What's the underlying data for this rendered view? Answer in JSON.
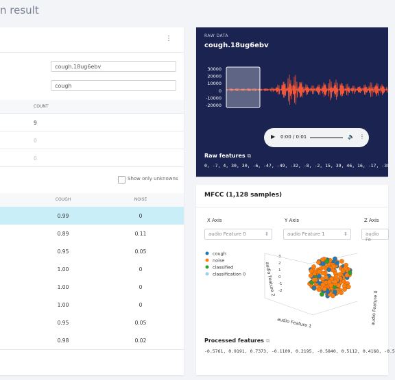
{
  "header": {
    "title": "n result"
  },
  "left_panel": {
    "fields": [
      "cough.18ug6ebv",
      "cough"
    ],
    "count_table": {
      "header": "COUNT",
      "rows": [
        "9",
        "0",
        "0"
      ]
    },
    "filter": {
      "label": "Show only unknowns"
    },
    "result_table": {
      "headers": [
        "COUGH",
        "NOISE"
      ],
      "rows": [
        [
          "0.99",
          "0"
        ],
        [
          "0.89",
          "0.11"
        ],
        [
          "0.95",
          "0.05"
        ],
        [
          "1.00",
          "0"
        ],
        [
          "1.00",
          "0"
        ],
        [
          "1.00",
          "0"
        ],
        [
          "0.95",
          "0.05"
        ],
        [
          "0.98",
          "0.02"
        ]
      ]
    }
  },
  "raw_data": {
    "label": "RAW DATA",
    "title": "cough.18ug6ebv",
    "y_labels": [
      "30000",
      "20000",
      "10000",
      "0",
      "-10000",
      "-20000"
    ],
    "player_time": "0:00 / 0:01",
    "features_title": "Raw features",
    "features": "0, -7, 4, 30, 30, -6, -47, -49, -32, -8, -2, 15, 39, 46, 16, -17, -39"
  },
  "mfcc": {
    "title": "MFCC (1,128 samples)",
    "axes": [
      "X Axis",
      "Y Axis",
      "Z Axis"
    ],
    "selects": [
      "audio Feature 0",
      "audio Feature 1",
      "audio Fe"
    ],
    "legend": [
      "cough",
      "noise",
      "classified",
      "classification 0"
    ],
    "plot_labels": [
      "audio Feature 2",
      "audio Feature 1",
      "audio Feature 0"
    ],
    "plot_ticks": [
      "3",
      "2",
      "1",
      "0",
      "-1",
      "-2"
    ],
    "features_title": "Processed features",
    "features": "-0.5761, 0.9191, 0.7373, -0.1109, 0.2195, -0.5840, 0.5112, 0.4168, -0.5"
  }
}
